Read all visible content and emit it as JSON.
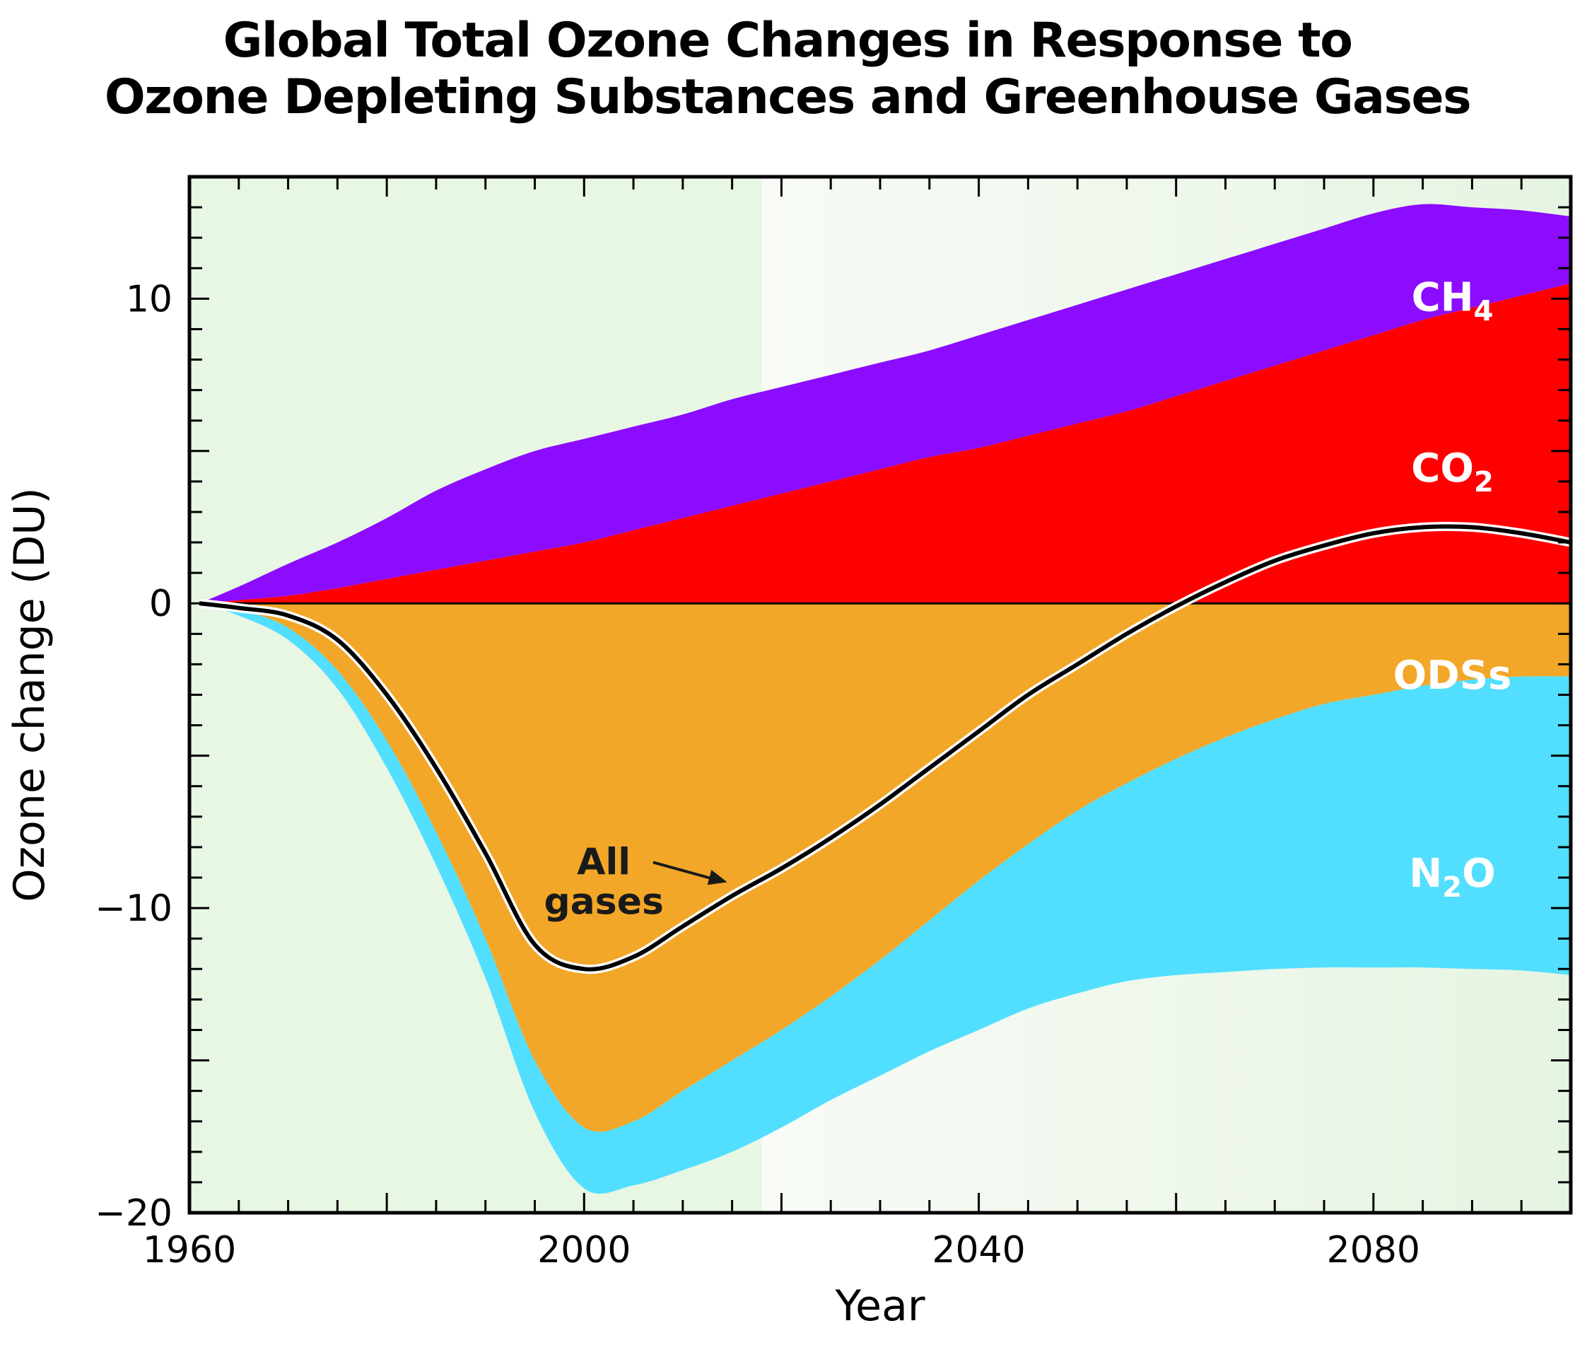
{
  "chart_data": {
    "type": "area",
    "title_lines": [
      "Global Total Ozone Changes in Response to",
      "Ozone Depleting Substances and Greenhouse Gases"
    ],
    "xlabel": "Year",
    "ylabel": "Ozone change (DU)",
    "xlim": [
      1960,
      2100
    ],
    "ylim": [
      -20,
      14
    ],
    "x_ticks": [
      1960,
      2000,
      2040,
      2080
    ],
    "x_tick_labels": [
      "1960",
      "2000",
      "2040",
      "2080"
    ],
    "y_ticks": [
      10,
      0,
      -10,
      -20
    ],
    "y_tick_labels": [
      "10",
      "0",
      "−10",
      "−20"
    ],
    "shaded_observed_until": 2018,
    "x": [
      1961,
      1965,
      1970,
      1975,
      1980,
      1985,
      1990,
      1995,
      2000,
      2005,
      2010,
      2015,
      2020,
      2025,
      2030,
      2035,
      2040,
      2045,
      2050,
      2055,
      2060,
      2065,
      2070,
      2075,
      2080,
      2085,
      2090,
      2095,
      2100
    ],
    "series": [
      {
        "name": "CH",
        "subscript": "4",
        "color": "#8c0cff",
        "values": [
          0,
          0.55,
          1.3,
          2.0,
          2.8,
          3.7,
          4.4,
          5.0,
          5.4,
          5.8,
          6.2,
          6.7,
          7.1,
          7.5,
          7.9,
          8.3,
          8.8,
          9.3,
          9.8,
          10.3,
          10.8,
          11.3,
          11.8,
          12.3,
          12.8,
          13.1,
          13.0,
          12.9,
          12.7
        ]
      },
      {
        "name": "CO",
        "subscript": "2",
        "color": "#ff0000",
        "values": [
          0,
          0.1,
          0.25,
          0.5,
          0.8,
          1.1,
          1.4,
          1.7,
          2.0,
          2.4,
          2.8,
          3.2,
          3.6,
          4.0,
          4.4,
          4.8,
          5.1,
          5.5,
          5.9,
          6.3,
          6.8,
          7.3,
          7.8,
          8.3,
          8.8,
          9.3,
          9.7,
          10.1,
          10.5
        ]
      },
      {
        "name": "ODSs",
        "color": "#f2a728",
        "values": [
          0,
          -0.2,
          -0.8,
          -2.2,
          -4.5,
          -7.5,
          -11.0,
          -15.0,
          -17.2,
          -17.0,
          -16.0,
          -15.0,
          -14.0,
          -12.9,
          -11.7,
          -10.4,
          -9.1,
          -7.9,
          -6.8,
          -5.9,
          -5.1,
          -4.4,
          -3.8,
          -3.3,
          -3.0,
          -2.7,
          -2.5,
          -2.4,
          -2.4
        ]
      },
      {
        "name": "N",
        "subscript": "2",
        "suffix": "O",
        "color": "#52dfff",
        "values": [
          0,
          -0.4,
          -1.2,
          -2.8,
          -5.4,
          -8.6,
          -12.3,
          -16.7,
          -19.2,
          -19.1,
          -18.6,
          -18.0,
          -17.2,
          -16.3,
          -15.5,
          -14.7,
          -14.0,
          -13.3,
          -12.8,
          -12.4,
          -12.2,
          -12.1,
          -12.0,
          -11.95,
          -11.95,
          -11.95,
          -12.0,
          -12.05,
          -12.2
        ]
      },
      {
        "name": "All gases",
        "color": "#000000",
        "values": [
          0,
          -0.15,
          -0.4,
          -1.2,
          -3.0,
          -5.4,
          -8.2,
          -11.2,
          -12.0,
          -11.6,
          -10.6,
          -9.6,
          -8.7,
          -7.7,
          -6.6,
          -5.4,
          -4.2,
          -3.0,
          -2.0,
          -1.0,
          -0.1,
          0.7,
          1.4,
          1.9,
          2.3,
          2.5,
          2.5,
          2.3,
          2.0
        ]
      }
    ],
    "legend_mode": "inline labels",
    "label_all_1": "All",
    "label_all_2": "gases"
  }
}
